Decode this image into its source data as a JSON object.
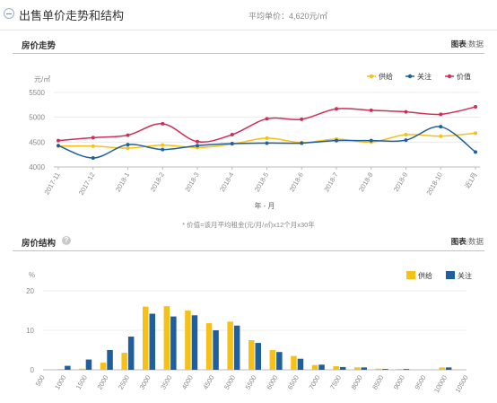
{
  "header": {
    "title": "出售单价走势和结构",
    "avg_price": "平均单价：4,620元/㎡"
  },
  "trend_panel": {
    "title": "房价走势",
    "tab_chart": "图表",
    "tab_separator": "|",
    "tab_data": "数据"
  },
  "structure_panel": {
    "title": "房价结构",
    "help_glyph": "?",
    "tab_chart": "图表",
    "tab_separator": "|",
    "tab_data": "数据"
  },
  "footnote": "* 价值=该月平均租金(元/月/㎡)x12个月x30年",
  "colors": {
    "supply": "#f5c117",
    "attention": "#1f5f9d",
    "value": "#cf2f57"
  },
  "chart_data": [
    {
      "type": "line",
      "ylabel": "元/㎡",
      "xlabel": "年 - 月",
      "ylim": [
        4000,
        5500
      ],
      "yticks": [
        4000,
        4500,
        5000,
        5500
      ],
      "grid": true,
      "legend_position": "top-right",
      "categories": [
        "2017-11",
        "2017-12",
        "2018-1",
        "2018-2",
        "2018-3",
        "2018-4",
        "2018-5",
        "2018-6",
        "2018-7",
        "2018-8",
        "2018-9",
        "2018-10",
        "近1月"
      ],
      "series": [
        {
          "name": "供给",
          "color": "#f5c117",
          "values": [
            4420,
            4420,
            4380,
            4440,
            4390,
            4460,
            4580,
            4490,
            4560,
            4500,
            4650,
            4620,
            4680
          ]
        },
        {
          "name": "关注",
          "color": "#1f5f9d",
          "values": [
            4430,
            4180,
            4450,
            4350,
            4430,
            4470,
            4480,
            4480,
            4530,
            4530,
            4540,
            4810,
            4300
          ]
        },
        {
          "name": "价值",
          "color": "#cf2f57",
          "values": [
            4530,
            4590,
            4640,
            4870,
            4510,
            4650,
            4970,
            4960,
            5170,
            5140,
            5110,
            5060,
            5210
          ]
        }
      ]
    },
    {
      "type": "bar",
      "ylabel": "%",
      "xlabel": "",
      "ylim": [
        0,
        20
      ],
      "yticks": [
        0,
        10,
        20
      ],
      "grid": true,
      "legend_position": "top-right",
      "categories": [
        "500",
        "1000",
        "1500",
        "2000",
        "2500",
        "3000",
        "3500",
        "4000",
        "4500",
        "5000",
        "5500",
        "6000",
        "6500",
        "7000",
        "7500",
        "8000",
        "8500",
        "9000",
        "9500",
        "10000",
        "10500"
      ],
      "series": [
        {
          "name": "供给",
          "color": "#f5c117",
          "values": [
            0,
            0.2,
            0.3,
            1.8,
            4.3,
            16.0,
            16.1,
            15.0,
            11.8,
            12.2,
            7.5,
            5.0,
            3.5,
            1.2,
            0.9,
            0.6,
            0.3,
            0.2,
            0.1,
            0.6,
            0
          ]
        },
        {
          "name": "关注",
          "color": "#1f5f9d",
          "values": [
            0,
            1.0,
            2.6,
            5.0,
            8.4,
            14.2,
            13.5,
            13.8,
            10.0,
            11.2,
            6.8,
            4.5,
            2.8,
            1.3,
            0.7,
            0.6,
            0.2,
            0.2,
            0,
            0.6,
            0
          ]
        }
      ]
    }
  ]
}
